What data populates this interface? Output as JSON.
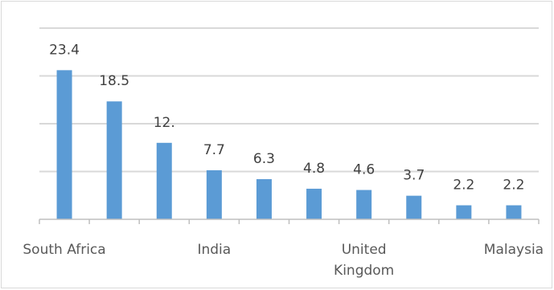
{
  "chart_data": {
    "type": "bar",
    "title": "",
    "xlabel": "",
    "ylabel": "",
    "categories": [
      "South Africa",
      "",
      "",
      "India",
      "",
      "",
      "United Kingdom",
      "",
      "",
      "Malaysia"
    ],
    "tick_labels": [
      {
        "index": 0,
        "lines": [
          "South Africa"
        ]
      },
      {
        "index": 3,
        "lines": [
          "India"
        ]
      },
      {
        "index": 6,
        "lines": [
          "United",
          "Kingdom"
        ]
      },
      {
        "index": 9,
        "lines": [
          "Malaysia"
        ]
      }
    ],
    "values": [
      23.4,
      18.5,
      12.0,
      7.7,
      6.3,
      4.8,
      4.6,
      3.7,
      2.2,
      2.2
    ],
    "data_labels": [
      "23.4",
      "18.5",
      "12.",
      "7.7",
      "6.3",
      "4.8",
      "4.6",
      "3.7",
      "2.2",
      "2.2"
    ],
    "ylim": [
      0,
      30
    ],
    "gridlines": [
      7.5,
      15,
      22.5,
      30
    ],
    "grid": true,
    "legend": "none",
    "colors": {
      "bar": "#5b9bd5",
      "grid": "#d9d9d9",
      "axis": "#bfbfbf"
    }
  }
}
